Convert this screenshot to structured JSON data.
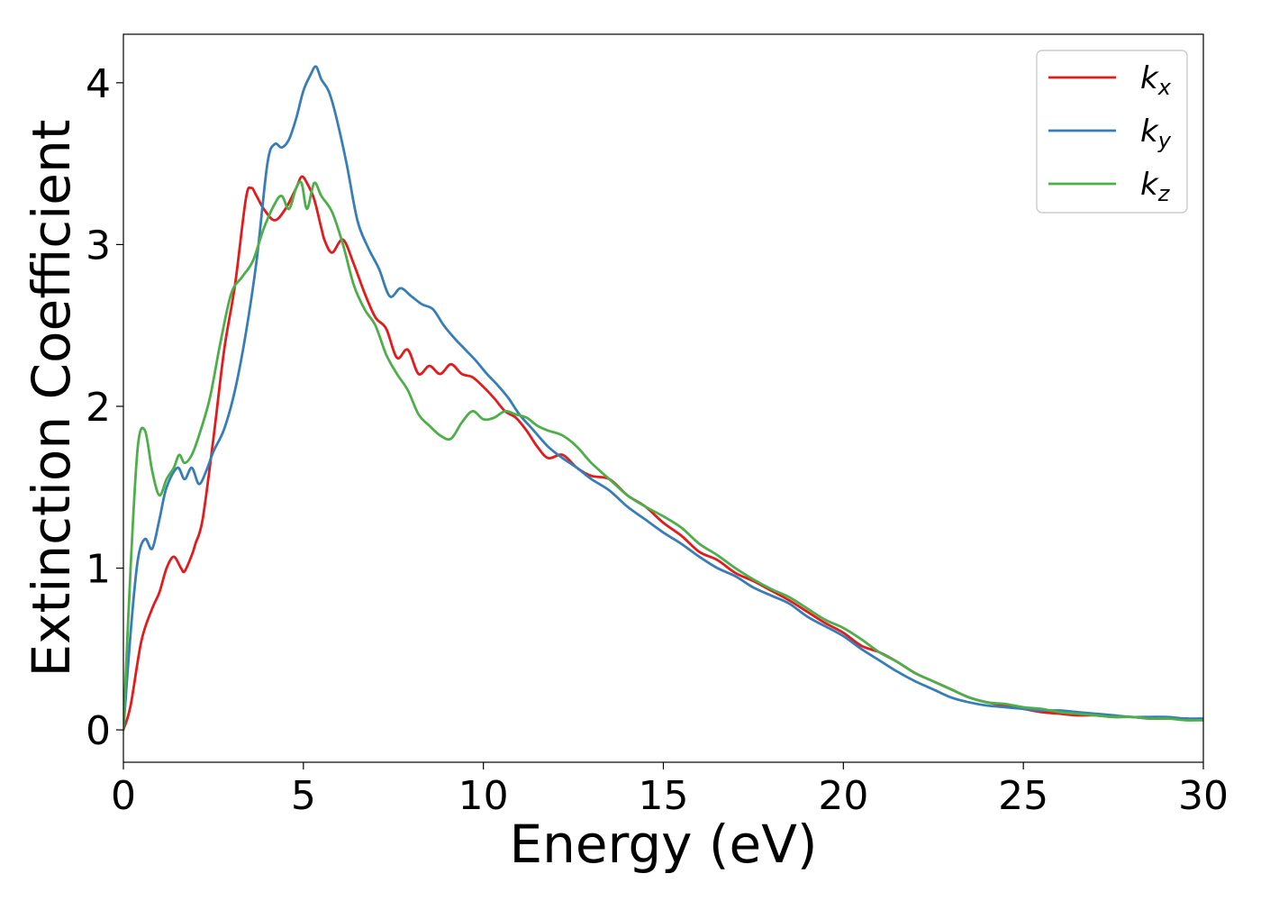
{
  "chart_data": {
    "type": "line",
    "title": "",
    "xlabel": "Energy (eV)",
    "ylabel": "Extinction Coefficient",
    "xlim": [
      0,
      30
    ],
    "ylim": [
      -0.2,
      4.3
    ],
    "xticks": [
      0,
      5,
      10,
      15,
      20,
      25,
      30
    ],
    "yticks": [
      0,
      1,
      2,
      3,
      4
    ],
    "grid": false,
    "legend_position": "top-right",
    "series": [
      {
        "name": "k_x",
        "label_base": "k",
        "label_sub": "x",
        "color": "#e41a1c",
        "x": [
          0,
          0.2,
          0.5,
          0.8,
          1.0,
          1.2,
          1.4,
          1.6,
          1.7,
          1.9,
          2.0,
          2.2,
          2.5,
          2.8,
          3.1,
          3.4,
          3.55,
          3.7,
          3.9,
          4.2,
          4.5,
          4.8,
          4.95,
          5.1,
          5.3,
          5.5,
          5.6,
          5.8,
          6.1,
          6.4,
          6.7,
          7.0,
          7.3,
          7.6,
          7.9,
          8.2,
          8.5,
          8.8,
          9.1,
          9.4,
          9.7,
          10.0,
          10.3,
          10.6,
          10.9,
          11.2,
          11.5,
          11.8,
          12.2,
          12.6,
          13.0,
          13.5,
          14.0,
          14.5,
          15.0,
          15.5,
          16.0,
          16.5,
          17.0,
          17.5,
          18.0,
          18.5,
          19.0,
          19.5,
          20.0,
          20.5,
          21.0,
          21.5,
          22.0,
          22.5,
          23.0,
          23.5,
          24.0,
          24.5,
          25.0,
          25.5,
          26.0,
          26.5,
          27.0,
          27.5,
          28.0,
          28.5,
          29.0,
          29.5,
          30.0
        ],
        "y": [
          0.0,
          0.15,
          0.55,
          0.75,
          0.85,
          1.0,
          1.07,
          1.0,
          0.98,
          1.08,
          1.15,
          1.3,
          1.8,
          2.35,
          2.75,
          3.28,
          3.35,
          3.3,
          3.22,
          3.15,
          3.22,
          3.35,
          3.42,
          3.38,
          3.28,
          3.1,
          3.02,
          2.95,
          3.03,
          2.88,
          2.7,
          2.55,
          2.48,
          2.3,
          2.35,
          2.2,
          2.25,
          2.2,
          2.26,
          2.2,
          2.18,
          2.12,
          2.05,
          1.97,
          1.93,
          1.85,
          1.75,
          1.68,
          1.7,
          1.62,
          1.57,
          1.55,
          1.45,
          1.38,
          1.28,
          1.2,
          1.1,
          1.05,
          0.97,
          0.92,
          0.86,
          0.8,
          0.73,
          0.66,
          0.6,
          0.52,
          0.48,
          0.42,
          0.35,
          0.3,
          0.25,
          0.2,
          0.17,
          0.15,
          0.13,
          0.11,
          0.1,
          0.09,
          0.09,
          0.08,
          0.08,
          0.07,
          0.07,
          0.07,
          0.06
        ]
      },
      {
        "name": "k_y",
        "label_base": "k",
        "label_sub": "y",
        "color": "#377eb8",
        "x": [
          0,
          0.2,
          0.4,
          0.6,
          0.8,
          1.0,
          1.2,
          1.5,
          1.7,
          1.9,
          2.1,
          2.3,
          2.5,
          2.8,
          3.1,
          3.4,
          3.7,
          4.0,
          4.2,
          4.4,
          4.6,
          4.8,
          5.0,
          5.2,
          5.35,
          5.5,
          5.7,
          5.9,
          6.2,
          6.5,
          6.8,
          7.1,
          7.4,
          7.7,
          8.0,
          8.3,
          8.6,
          8.9,
          9.2,
          9.5,
          9.8,
          10.1,
          10.4,
          10.7,
          11.0,
          11.4,
          11.8,
          12.2,
          12.6,
          13.0,
          13.5,
          14.0,
          14.5,
          15.0,
          15.5,
          16.0,
          16.5,
          17.0,
          17.5,
          18.0,
          18.5,
          19.0,
          19.5,
          20.0,
          20.5,
          21.0,
          21.5,
          22.0,
          22.5,
          23.0,
          23.5,
          24.0,
          24.5,
          25.0,
          25.5,
          26.0,
          26.5,
          27.0,
          27.5,
          28.0,
          28.5,
          29.0,
          29.5,
          30.0
        ],
        "y": [
          0.0,
          0.6,
          1.05,
          1.18,
          1.12,
          1.3,
          1.5,
          1.62,
          1.55,
          1.62,
          1.52,
          1.6,
          1.72,
          1.86,
          2.1,
          2.45,
          2.9,
          3.5,
          3.62,
          3.6,
          3.65,
          3.78,
          3.95,
          4.05,
          4.1,
          4.02,
          3.95,
          3.8,
          3.5,
          3.15,
          2.98,
          2.85,
          2.68,
          2.73,
          2.68,
          2.63,
          2.6,
          2.5,
          2.42,
          2.35,
          2.28,
          2.2,
          2.13,
          2.05,
          1.95,
          1.85,
          1.75,
          1.68,
          1.62,
          1.55,
          1.48,
          1.38,
          1.3,
          1.22,
          1.15,
          1.07,
          1.0,
          0.95,
          0.88,
          0.83,
          0.78,
          0.7,
          0.64,
          0.58,
          0.5,
          0.43,
          0.36,
          0.3,
          0.25,
          0.2,
          0.17,
          0.15,
          0.14,
          0.13,
          0.12,
          0.12,
          0.11,
          0.1,
          0.09,
          0.08,
          0.08,
          0.08,
          0.07,
          0.07
        ]
      },
      {
        "name": "k_z",
        "label_base": "k",
        "label_sub": "z",
        "color": "#4daf4a",
        "x": [
          0,
          0.2,
          0.4,
          0.6,
          0.8,
          1.0,
          1.2,
          1.4,
          1.55,
          1.7,
          1.9,
          2.1,
          2.4,
          2.7,
          3.0,
          3.3,
          3.6,
          3.9,
          4.2,
          4.4,
          4.6,
          4.8,
          4.95,
          5.1,
          5.3,
          5.5,
          5.8,
          6.1,
          6.4,
          6.7,
          7.0,
          7.3,
          7.6,
          7.9,
          8.2,
          8.5,
          8.8,
          9.1,
          9.4,
          9.7,
          10.0,
          10.3,
          10.6,
          10.9,
          11.2,
          11.5,
          11.8,
          12.2,
          12.6,
          13.0,
          13.5,
          14.0,
          14.5,
          15.0,
          15.5,
          16.0,
          16.5,
          17.0,
          17.5,
          18.0,
          18.5,
          19.0,
          19.5,
          20.0,
          20.5,
          21.0,
          21.5,
          22.0,
          22.5,
          23.0,
          23.5,
          24.0,
          24.5,
          25.0,
          25.5,
          26.0,
          26.5,
          27.0,
          27.5,
          28.0,
          28.5,
          29.0,
          29.5,
          30.0
        ],
        "y": [
          0.0,
          1.0,
          1.75,
          1.85,
          1.6,
          1.45,
          1.55,
          1.62,
          1.7,
          1.65,
          1.7,
          1.82,
          2.05,
          2.4,
          2.7,
          2.8,
          2.9,
          3.1,
          3.25,
          3.3,
          3.22,
          3.35,
          3.38,
          3.22,
          3.38,
          3.3,
          3.2,
          3.0,
          2.75,
          2.6,
          2.5,
          2.32,
          2.2,
          2.1,
          1.95,
          1.88,
          1.82,
          1.8,
          1.9,
          1.97,
          1.92,
          1.93,
          1.97,
          1.95,
          1.93,
          1.88,
          1.85,
          1.82,
          1.75,
          1.65,
          1.55,
          1.45,
          1.38,
          1.32,
          1.25,
          1.15,
          1.08,
          1.0,
          0.93,
          0.87,
          0.82,
          0.75,
          0.68,
          0.63,
          0.56,
          0.48,
          0.42,
          0.35,
          0.3,
          0.25,
          0.2,
          0.17,
          0.16,
          0.14,
          0.13,
          0.11,
          0.1,
          0.09,
          0.08,
          0.08,
          0.07,
          0.07,
          0.06,
          0.06
        ]
      }
    ]
  }
}
